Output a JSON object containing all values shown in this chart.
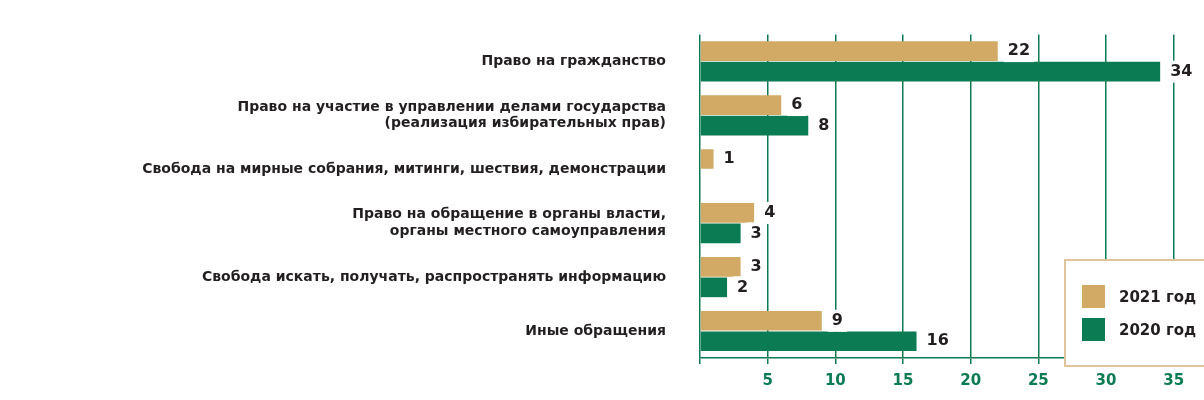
{
  "chart_data": {
    "type": "bar",
    "orientation": "horizontal",
    "data_labels": true,
    "grid": "x",
    "legend": "bottom right",
    "categories": [
      "Право на гражданство",
      "Право на участие в управлении делами государства\n(реализация избирательных прав)",
      "Свобода на мирные собрания, митинги, шествия, демонстрации",
      "Право на обращение в органы власти,\nорганы местного самоуправления",
      "Свобода искать, получать, распространять информацию",
      "Иные обращения"
    ],
    "series": [
      {
        "name": "2021 год",
        "color": "#d2aa66",
        "values": [
          22,
          6,
          1,
          4,
          3,
          9
        ]
      },
      {
        "name": "2020 год",
        "color": "#0a7b52",
        "values": [
          34,
          8,
          null,
          3,
          2,
          16
        ]
      }
    ],
    "xlim": [
      0,
      36.5
    ],
    "xticks": [
      {
        "value": 0,
        "label": null
      },
      5,
      10,
      15,
      20,
      25,
      30,
      35
    ]
  }
}
